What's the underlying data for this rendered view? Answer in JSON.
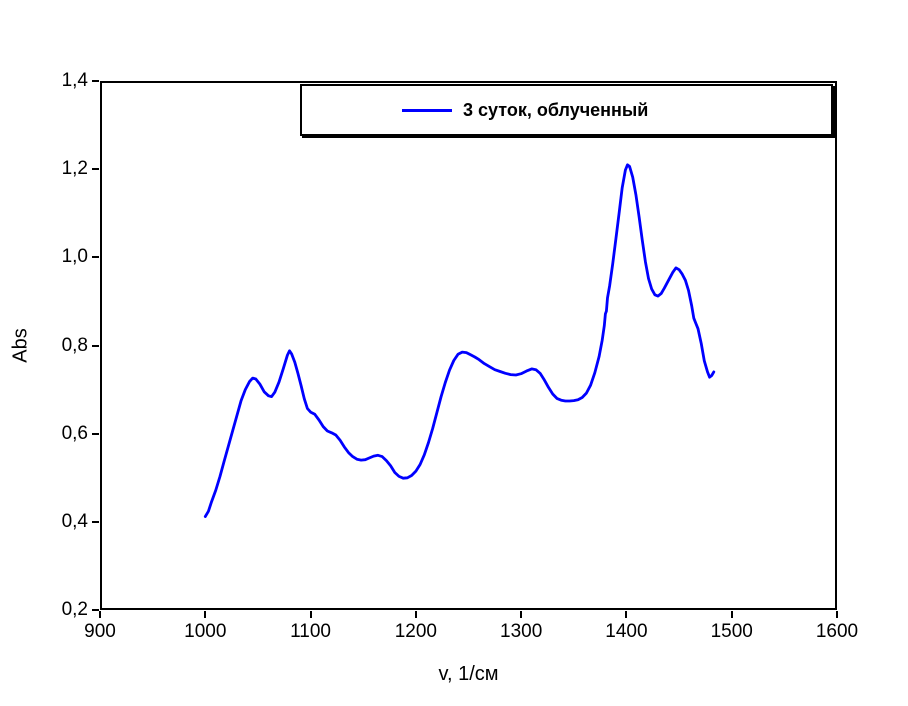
{
  "figure": {
    "background": "#ffffff",
    "frame_color": "#000000"
  },
  "chart_data": {
    "type": "line",
    "title": "",
    "xlabel": "v, 1/см",
    "ylabel": "Abs",
    "xlim": [
      900,
      1600
    ],
    "ylim": [
      0.2,
      1.4
    ],
    "grid": false,
    "x_ticks": [
      900,
      1000,
      1100,
      1200,
      1300,
      1400,
      1500,
      1600
    ],
    "x_tick_labels": [
      "900",
      "1000",
      "1100",
      "1200",
      "1300",
      "1400",
      "1500",
      "1600"
    ],
    "y_ticks": [
      0.2,
      0.4,
      0.6,
      0.8,
      1.0,
      1.2,
      1.4
    ],
    "y_tick_labels": [
      "0,2",
      "0,4",
      "0,6",
      "0,8",
      "1,0",
      "1,2",
      "1,4"
    ],
    "legend": {
      "position": "top-inside",
      "entries": [
        {
          "label": "3 суток, облученный",
          "color": "#0000ff"
        }
      ]
    },
    "series": [
      {
        "name": "3 суток, облученный",
        "color": "#0000ff",
        "points": [
          [
            1000,
            0.412
          ],
          [
            1003,
            0.424
          ],
          [
            1006,
            0.446
          ],
          [
            1010,
            0.472
          ],
          [
            1014,
            0.503
          ],
          [
            1018,
            0.538
          ],
          [
            1022,
            0.572
          ],
          [
            1026,
            0.607
          ],
          [
            1030,
            0.641
          ],
          [
            1034,
            0.675
          ],
          [
            1038,
            0.7
          ],
          [
            1042,
            0.718
          ],
          [
            1045,
            0.726
          ],
          [
            1048,
            0.724
          ],
          [
            1052,
            0.712
          ],
          [
            1056,
            0.695
          ],
          [
            1060,
            0.686
          ],
          [
            1063,
            0.684
          ],
          [
            1066,
            0.694
          ],
          [
            1070,
            0.717
          ],
          [
            1074,
            0.747
          ],
          [
            1078,
            0.778
          ],
          [
            1080,
            0.788
          ],
          [
            1082,
            0.781
          ],
          [
            1085,
            0.762
          ],
          [
            1088,
            0.737
          ],
          [
            1091,
            0.709
          ],
          [
            1094,
            0.679
          ],
          [
            1097,
            0.657
          ],
          [
            1100,
            0.649
          ],
          [
            1104,
            0.644
          ],
          [
            1108,
            0.631
          ],
          [
            1112,
            0.616
          ],
          [
            1116,
            0.606
          ],
          [
            1120,
            0.602
          ],
          [
            1124,
            0.597
          ],
          [
            1128,
            0.585
          ],
          [
            1132,
            0.57
          ],
          [
            1136,
            0.557
          ],
          [
            1140,
            0.548
          ],
          [
            1144,
            0.542
          ],
          [
            1148,
            0.54
          ],
          [
            1152,
            0.541
          ],
          [
            1156,
            0.545
          ],
          [
            1160,
            0.549
          ],
          [
            1164,
            0.551
          ],
          [
            1168,
            0.548
          ],
          [
            1172,
            0.539
          ],
          [
            1176,
            0.527
          ],
          [
            1180,
            0.512
          ],
          [
            1184,
            0.503
          ],
          [
            1188,
            0.499
          ],
          [
            1192,
            0.5
          ],
          [
            1196,
            0.505
          ],
          [
            1200,
            0.515
          ],
          [
            1204,
            0.53
          ],
          [
            1208,
            0.552
          ],
          [
            1212,
            0.58
          ],
          [
            1216,
            0.612
          ],
          [
            1220,
            0.648
          ],
          [
            1224,
            0.684
          ],
          [
            1228,
            0.716
          ],
          [
            1232,
            0.744
          ],
          [
            1236,
            0.766
          ],
          [
            1240,
            0.78
          ],
          [
            1244,
            0.785
          ],
          [
            1248,
            0.784
          ],
          [
            1252,
            0.779
          ],
          [
            1256,
            0.774
          ],
          [
            1260,
            0.768
          ],
          [
            1265,
            0.759
          ],
          [
            1270,
            0.752
          ],
          [
            1275,
            0.745
          ],
          [
            1280,
            0.741
          ],
          [
            1285,
            0.737
          ],
          [
            1290,
            0.734
          ],
          [
            1295,
            0.733
          ],
          [
            1300,
            0.736
          ],
          [
            1305,
            0.742
          ],
          [
            1310,
            0.747
          ],
          [
            1314,
            0.745
          ],
          [
            1318,
            0.737
          ],
          [
            1322,
            0.722
          ],
          [
            1326,
            0.705
          ],
          [
            1330,
            0.69
          ],
          [
            1334,
            0.68
          ],
          [
            1338,
            0.676
          ],
          [
            1342,
            0.674
          ],
          [
            1346,
            0.674
          ],
          [
            1350,
            0.675
          ],
          [
            1354,
            0.677
          ],
          [
            1358,
            0.682
          ],
          [
            1362,
            0.692
          ],
          [
            1366,
            0.71
          ],
          [
            1370,
            0.738
          ],
          [
            1374,
            0.775
          ],
          [
            1377,
            0.812
          ],
          [
            1379,
            0.845
          ],
          [
            1380,
            0.872
          ],
          [
            1381,
            0.878
          ],
          [
            1382,
            0.908
          ],
          [
            1384,
            0.935
          ],
          [
            1387,
            0.985
          ],
          [
            1390,
            1.042
          ],
          [
            1393,
            1.1
          ],
          [
            1396,
            1.158
          ],
          [
            1399,
            1.198
          ],
          [
            1401,
            1.21
          ],
          [
            1403,
            1.206
          ],
          [
            1406,
            1.182
          ],
          [
            1409,
            1.142
          ],
          [
            1412,
            1.092
          ],
          [
            1415,
            1.04
          ],
          [
            1418,
            0.99
          ],
          [
            1421,
            0.952
          ],
          [
            1424,
            0.928
          ],
          [
            1427,
            0.915
          ],
          [
            1430,
            0.912
          ],
          [
            1433,
            0.918
          ],
          [
            1436,
            0.93
          ],
          [
            1440,
            0.948
          ],
          [
            1444,
            0.966
          ],
          [
            1447,
            0.976
          ],
          [
            1450,
            0.972
          ],
          [
            1453,
            0.962
          ],
          [
            1456,
            0.948
          ],
          [
            1459,
            0.925
          ],
          [
            1462,
            0.89
          ],
          [
            1464,
            0.862
          ],
          [
            1466,
            0.85
          ],
          [
            1468,
            0.838
          ],
          [
            1471,
            0.805
          ],
          [
            1474,
            0.765
          ],
          [
            1477,
            0.74
          ],
          [
            1479,
            0.728
          ],
          [
            1481,
            0.732
          ],
          [
            1483,
            0.74
          ]
        ]
      }
    ]
  }
}
